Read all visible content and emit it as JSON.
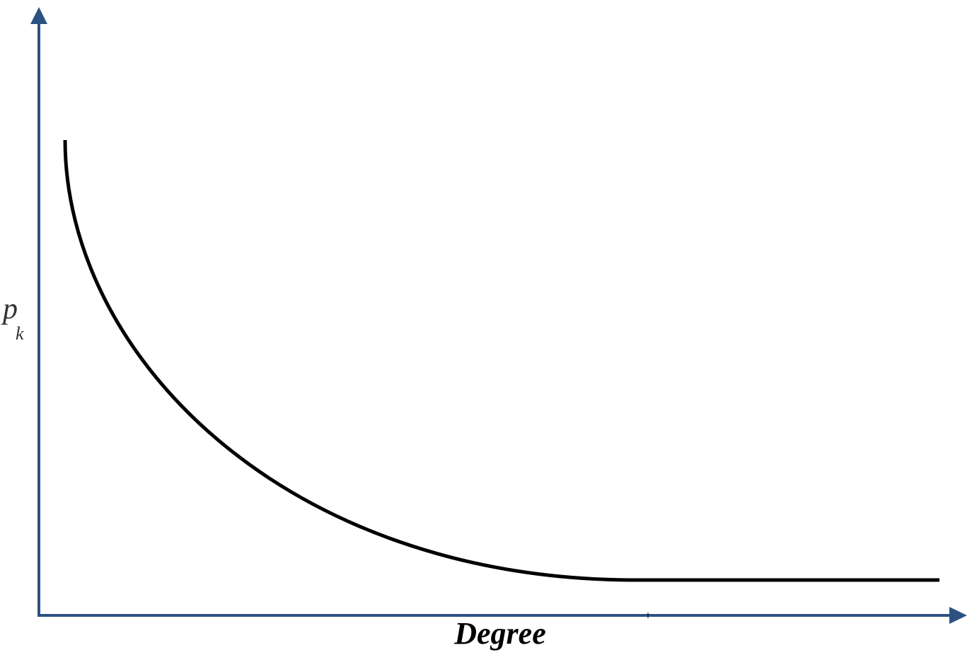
{
  "x_axis": {
    "label": "Degree"
  },
  "y_axis": {
    "label": "p",
    "subscript": "k"
  }
}
